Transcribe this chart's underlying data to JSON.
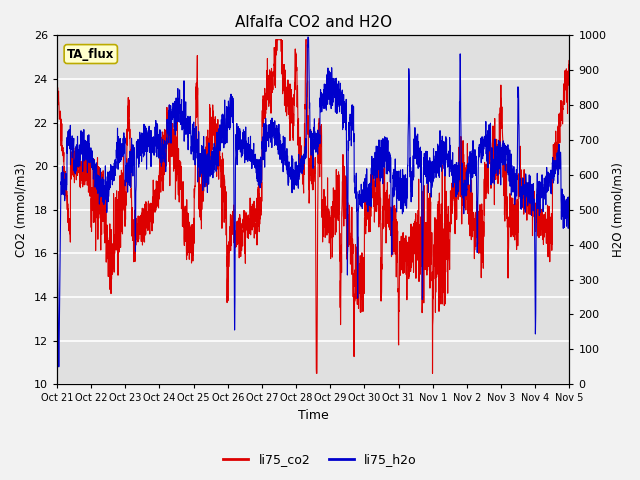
{
  "title": "Alfalfa CO2 and H2O",
  "xlabel": "Time",
  "ylabel_left": "CO2 (mmol/m3)",
  "ylabel_right": "H2O (mmol/m3)",
  "ylim_left": [
    10,
    26
  ],
  "ylim_right": [
    0,
    1000
  ],
  "yticks_left": [
    10,
    12,
    14,
    16,
    18,
    20,
    22,
    24,
    26
  ],
  "yticks_right": [
    0,
    100,
    200,
    300,
    400,
    500,
    600,
    700,
    800,
    900,
    1000
  ],
  "xtick_labels": [
    "Oct 21",
    "Oct 22",
    "Oct 23",
    "Oct 24",
    "Oct 25",
    "Oct 26",
    "Oct 27",
    "Oct 28",
    "Oct 29",
    "Oct 30",
    "Oct 31",
    "Nov 1",
    "Nov 2",
    "Nov 3",
    "Nov 4",
    "Nov 5"
  ],
  "annotation_text": "TA_flux",
  "annotation_bg": "#ffffcc",
  "annotation_border": "#bbaa00",
  "co2_color": "#dd0000",
  "h2o_color": "#0000cc",
  "legend_co2": "li75_co2",
  "legend_h2o": "li75_h2o",
  "bg_color": "#e0e0e0",
  "grid_color": "#ffffff",
  "linewidth": 0.8,
  "fig_bg": "#f2f2f2"
}
